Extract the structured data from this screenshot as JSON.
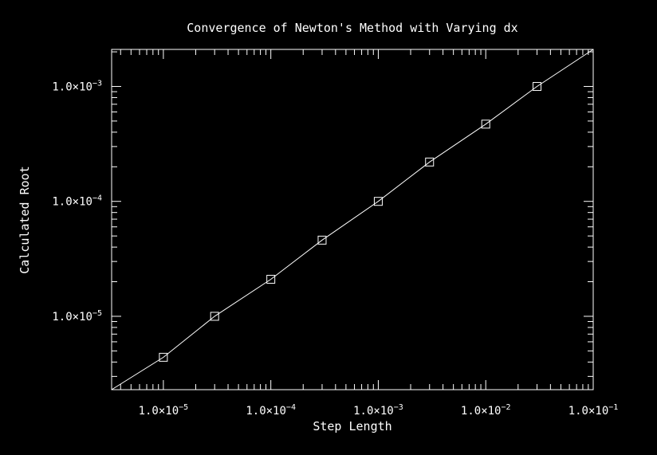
{
  "chart_data": {
    "type": "line",
    "title": "Convergence of Newton's Method with Varying dx",
    "xlabel": "Step Length",
    "ylabel": "Calculated Root",
    "xscale": "log",
    "yscale": "log",
    "xlim": [
      3.3e-06,
      0.1
    ],
    "ylim": [
      2.3e-06,
      0.0021
    ],
    "grid": false,
    "legend": "none",
    "marker": "open-square",
    "line_color": "#ffffff",
    "background": "#000000",
    "x_major_ticks": [
      {
        "value": 1e-05,
        "mantissa": "1.0×10",
        "exponent": "−5"
      },
      {
        "value": 0.0001,
        "mantissa": "1.0×10",
        "exponent": "−4"
      },
      {
        "value": 0.001,
        "mantissa": "1.0×10",
        "exponent": "−3"
      },
      {
        "value": 0.01,
        "mantissa": "1.0×10",
        "exponent": "−2"
      },
      {
        "value": 0.1,
        "mantissa": "1.0×10",
        "exponent": "−1"
      }
    ],
    "y_major_ticks": [
      {
        "value": 1e-05,
        "mantissa": "1.0×10",
        "exponent": "−5"
      },
      {
        "value": 0.0001,
        "mantissa": "1.0×10",
        "exponent": "−4"
      },
      {
        "value": 0.001,
        "mantissa": "1.0×10",
        "exponent": "−3"
      }
    ],
    "x": [
      3.3e-06,
      1e-05,
      3e-05,
      0.0001,
      0.0003,
      0.001,
      0.003,
      0.01,
      0.03,
      0.1
    ],
    "y": [
      2.3e-06,
      4.4e-06,
      1e-05,
      2.1e-05,
      4.6e-05,
      0.0001,
      0.00022,
      0.00047,
      0.001,
      0.0021
    ],
    "marked_points": [
      1,
      2,
      3,
      4,
      5,
      6,
      7,
      8
    ]
  }
}
